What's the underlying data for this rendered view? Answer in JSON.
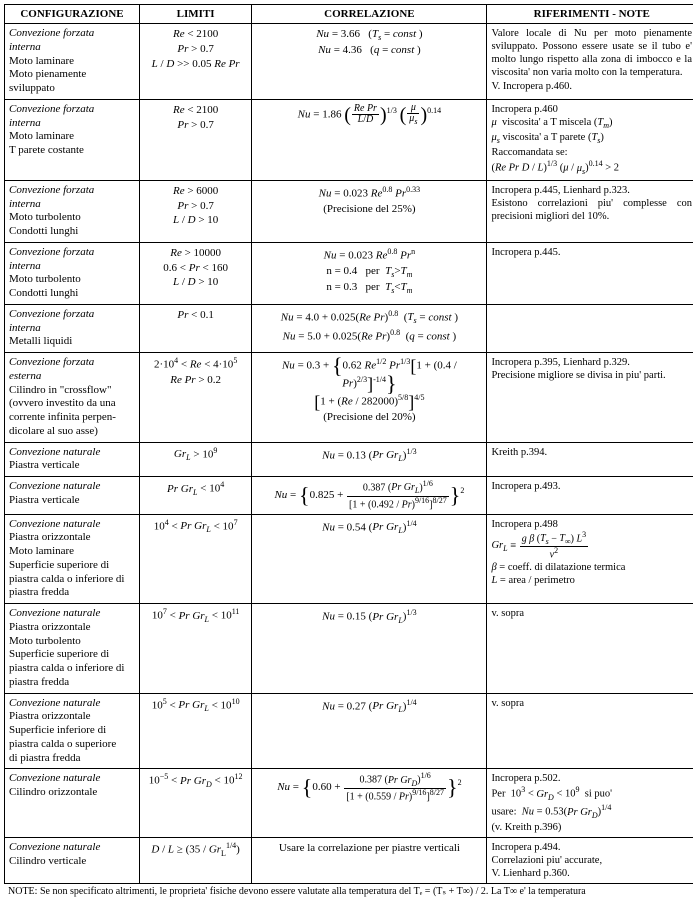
{
  "headers": {
    "c1": "CONFIGURAZIONE",
    "c2": "LIMITI",
    "c3": "CORRELAZIONE",
    "c4": "RIFERIMENTI - NOTE"
  },
  "rows": [
    {
      "config_html": "<span class='i'>Convezione forzata<br>interna</span><br><span class='plain'>Moto laminare<br>Moto pienamente<br>sviluppato</span>",
      "limits_html": "<span class='i'>Re</span> &lt; 2100<br><span class='i'>Pr</span> &gt; 0.7<br><span class='i'>L</span> / <span class='i'>D</span> &gt;&gt; 0.05 <span class='i'>Re Pr</span>",
      "corr_html": "<span class='i'>Nu</span> = 3.66 &nbsp; (<span class='i'>T<span class='sub'>s</span></span> = <span class='i'>const</span> )<br><span class='i'>Nu</span> = 4.36 &nbsp; (<span class='i'>q</span> = <span class='i'>const</span> )",
      "notes_html": "Valore locale di Nu per moto pienamente sviluppato. Possono essere usate se il tubo e' molto lungo rispetto alla zona di imbocco e la viscosita' non varia molto con la temperatura.<br>V. Incropera p.460."
    },
    {
      "config_html": "<span class='i'>Convezione forzata<br>interna</span><br><span class='plain'>Moto laminare<br>T parete costante</span>",
      "limits_html": "<span class='i'>Re</span> &lt; 2100<br><span class='i'>Pr</span> &gt; 0.7",
      "corr_html": "<span class='i'>Nu</span> = 1.86 <span class='bigp'>(</span><span class='frac'><span class='num'><span class='i'>Re Pr</span></span><span class='den'><span class='i'>L</span>/<span class='i'>D</span></span></span><span class='bigp'>)</span><span class='sup'>1/3</span> <span class='bigp'>(</span><span class='frac'><span class='num'><span class='i'>&mu;</span></span><span class='den'><span class='i'>&mu;<span class='sub'>s</span></span></span></span><span class='bigp'>)</span><span class='sup'>0.14</span>",
      "notes_html": "Incropera p.460<br><span class='i'>&mu;</span> &nbsp;viscosita' a T miscela (<span class='i'>T<span class='sub'>m</span></span>)<br><span class='i'>&mu;<span class='sub'>s</span></span> viscosita' a T parete (<span class='i'>T<span class='sub'>s</span></span>)<br>Raccomandata se:<br>(<span class='i'>Re Pr D</span> / <span class='i'>L</span>)<span class='sup'>1/3</span> (<span class='i'>&mu;</span> / <span class='i'>&mu;<span class='sub'>s</span></span>)<span class='sup'>0.14</span> &gt; 2"
    },
    {
      "config_html": "<span class='i'>Convezione forzata<br>interna</span><br><span class='plain'>Moto turbolento<br>Condotti lunghi</span>",
      "limits_html": "<span class='i'>Re</span> &gt; 6000<br><span class='i'>Pr</span> &gt; 0.7<br><span class='i'>L</span> / <span class='i'>D</span> &gt; 10",
      "corr_html": "<span class='i'>Nu</span> = 0.023 <span class='i'>Re</span><span class='sup'>0.8</span> <span class='i'>Pr</span><span class='sup'>0.33</span><br>(Precisione del 25%)",
      "notes_html": "Incropera p.445, Lienhard p.323.<br>Esistono correlazioni piu' complesse con precisioni migliori del 10%."
    },
    {
      "config_html": "<span class='i'>Convezione forzata<br>interna</span><br><span class='plain'>Moto turbolento<br>Condotti lunghi</span>",
      "limits_html": "<span class='i'>Re</span> &gt; 10000<br>0.6 &lt; <span class='i'>Pr</span> &lt; 160<br><span class='i'>L</span> / <span class='i'>D</span> &gt; 10",
      "corr_html": "<span class='i'>Nu</span> = 0.023 <span class='i'>Re</span><span class='sup'>0.8</span> <span class='i'>Pr</span><span class='sup'>n</span><br>n = 0.4 &nbsp; per &nbsp;<span class='i'>T<span class='sub'>s</span></span>&gt;<span class='i'>T<span class='sub'>m</span></span><br>n = 0.3 &nbsp; per &nbsp;<span class='i'>T<span class='sub'>s</span></span>&lt;<span class='i'>T<span class='sub'>m</span></span>",
      "notes_html": "Incropera p.445."
    },
    {
      "config_html": "<span class='i'>Convezione forzata<br>interna</span><br><span class='plain'>Metalli liquidi</span>",
      "limits_html": "<span class='i'>Pr</span> &lt; 0.1",
      "corr_html": "<span class='i'>Nu</span> = 4.0 + 0.025(<span class='i'>Re Pr</span>)<span class='sup'>0.8</span> &nbsp;(<span class='i'>T<span class='sub'>s</span></span> = <span class='i'>const</span> )<br><span class='i'>Nu</span> = 5.0 + 0.025(<span class='i'>Re Pr</span>)<span class='sup'>0.8</span> &nbsp;(<span class='i'>q</span> = <span class='i'>const</span> )",
      "notes_html": ""
    },
    {
      "config_html": "<span class='i'>Convezione forzata<br>esterna</span><br><span class='plain'>Cilindro in &quot;crossflow&quot;<br>(ovvero investito da una<br>corrente infinita perpen-<br>dicolare al suo asse)</span>",
      "limits_html": "2&middot;10<span class='sup'>4</span> &lt; <span class='i'>Re</span> &lt; 4&middot;10<span class='sup'>5</span><br><span class='i'>Re Pr</span> &gt; 0.2",
      "corr_html": "<span class='i'>Nu</span> = 0.3 + <span class='bigc'>{</span>0.62 <span class='i'>Re</span><span class='sup'>1/2</span> <span class='i'>Pr</span><span class='sup'>1/3</span><span class='bigb'>[</span>1 + (0.4 / <span class='i'>Pr</span>)<span class='sup'>2/3</span><span class='bigb'>]</span><span class='sup'>-1/4</span><span class='bigc'>}</span><br><span class='bigb'>[</span>1 + (<span class='i'>Re</span> / 282000)<span class='sup'>5/8</span><span class='bigb'>]</span><span class='sup'>4/5</span><br>(Precisione del 20%)",
      "notes_html": "Incropera p.395, Lienhard p.329.<br>Precisione migliore se divisa in piu' parti."
    },
    {
      "config_html": "<span class='i'>Convezione naturale</span><br><span class='plain'>Piastra verticale</span>",
      "limits_html": "<span class='i'>Gr<span class='sub'>L</span></span> &gt; 10<span class='sup'>9</span>",
      "corr_html": "<span class='i'>Nu</span> = 0.13 (<span class='i'>Pr Gr<span class='sub'>L</span></span>)<span class='sup'>1/3</span>",
      "notes_html": "Kreith p.394."
    },
    {
      "config_html": "<span class='i'>Convezione naturale</span><br><span class='plain'>Piastra verticale</span>",
      "limits_html": "<span class='i'>Pr Gr<span class='sub'>L</span></span> &lt; 10<span class='sup'>4</span>",
      "corr_html": "<span class='i'>Nu</span> = <span class='bigc'>{</span>0.825 + <span class='frac'><span class='num'>0.387 (<span class='i'>Pr Gr<span class='sub'>L</span></span>)<span class='sup'>1/6</span></span><span class='den'>[1 + (0.492 / <span class='i'>Pr</span>)<span class='sup'>9/16</span>]<span class='sup'>8/27</span></span></span><span class='bigc'>}</span><span class='sup'>2</span>",
      "notes_html": "Incropera p.493."
    },
    {
      "config_html": "<span class='i'>Convezione naturale</span><br><span class='plain'>Piastra orizzontale<br>Moto laminare<br>Superficie superiore di<br>piastra calda o inferiore di<br>piastra fredda</span>",
      "limits_html": "10<span class='sup'>4</span> &lt; <span class='i'>Pr Gr<span class='sub'>L</span></span> &lt; 10<span class='sup'>7</span>",
      "corr_html": "<span class='i'>Nu</span> = 0.54 (<span class='i'>Pr Gr<span class='sub'>L</span></span>)<span class='sup'>1/4</span>",
      "notes_html": "Incropera p.498<br><span class='i'>Gr<span class='sub'>L</span></span> &equiv; <span class='frac'><span class='num'><span class='i'>g &beta;</span> (<span class='i'>T<span class='sub'>s</span></span> &minus; <span class='i'>T<span class='sub'>&infin;</span></span>) <span class='i'>L</span><span class='sup'>3</span></span><span class='den'><span class='i'>&nu;</span><span class='sup'>2</span></span></span><br><span class='i'>&beta;</span> = coeff. di dilatazione termica<br><span class='i'>L</span> = area / perimetro"
    },
    {
      "config_html": "<span class='i'>Convezione naturale</span><br><span class='plain'>Piastra orizzontale<br>Moto turbolento<br>Superficie superiore di<br>piastra calda o inferiore di<br>piastra fredda</span>",
      "limits_html": "10<span class='sup'>7</span> &lt; <span class='i'>Pr Gr<span class='sub'>L</span></span> &lt; 10<span class='sup'>11</span>",
      "corr_html": "<span class='i'>Nu</span> = 0.15 (<span class='i'>Pr Gr<span class='sub'>L</span></span>)<span class='sup'>1/3</span>",
      "notes_html": "v. sopra"
    },
    {
      "config_html": "<span class='i'>Convezione naturale</span><br><span class='plain'>Piastra orizzontale<br>Superficie inferiore di<br>piastra calda o superiore<br>di piastra fredda</span>",
      "limits_html": "10<span class='sup'>5</span> &lt; <span class='i'>Pr Gr<span class='sub'>L</span></span> &lt; 10<span class='sup'>10</span>",
      "corr_html": "<span class='i'>Nu</span> = 0.27 (<span class='i'>Pr Gr<span class='sub'>L</span></span>)<span class='sup'>1/4</span>",
      "notes_html": "v. sopra"
    },
    {
      "config_html": "<span class='i'>Convezione naturale</span><br><span class='plain'>Cilindro orizzontale</span>",
      "limits_html": "10<span class='sup'>&minus;5</span> &lt; <span class='i'>Pr Gr<span class='sub'>D</span></span> &lt; 10<span class='sup'>12</span>",
      "corr_html": "<span class='i'>Nu</span> = <span class='bigc'>{</span>0.60 + <span class='frac'><span class='num'>0.387 (<span class='i'>Pr Gr<span class='sub'>D</span></span>)<span class='sup'>1/6</span></span><span class='den'>[1 + (0.559 / <span class='i'>Pr</span>)<span class='sup'>9/16</span>]<span class='sup'>8/27</span></span></span><span class='bigc'>}</span><span class='sup'>2</span>",
      "notes_html": "Incropera p.502.<br>Per &nbsp;10<span class='sup'>3</span> &lt; <span class='i'>Gr<span class='sub'>D</span></span> &lt; 10<span class='sup'>9</span> &nbsp;si puo'<br>usare: &nbsp;<span class='i'>Nu</span> = 0.53(<span class='i'>Pr Gr<span class='sub'>D</span></span>)<span class='sup'>1/4</span><br>(v. Kreith p.396)"
    },
    {
      "config_html": "<span class='i'>Convezione naturale</span><br><span class='plain'>Cilindro verticale</span>",
      "limits_html": "<span class='i'>D</span> / <span class='i'>L</span> &ge; (35 / <span class='i'>Gr</span><span class='sub'>L</span><span class='sup'>1/4</span>)",
      "corr_html": "Usare la correlazione per piastre verticali",
      "notes_html": "Incropera p.494.<br>Correlazioni piu' accurate,<br>V. Lienhard p.360."
    }
  ],
  "footnote": "NOTE: Se non specificato altrimenti, le proprieta' fisiche devono essere valutate alla temperatura del Tₑ = (Tₛ + T∞) / 2. La T∞  e' la temperatura"
}
